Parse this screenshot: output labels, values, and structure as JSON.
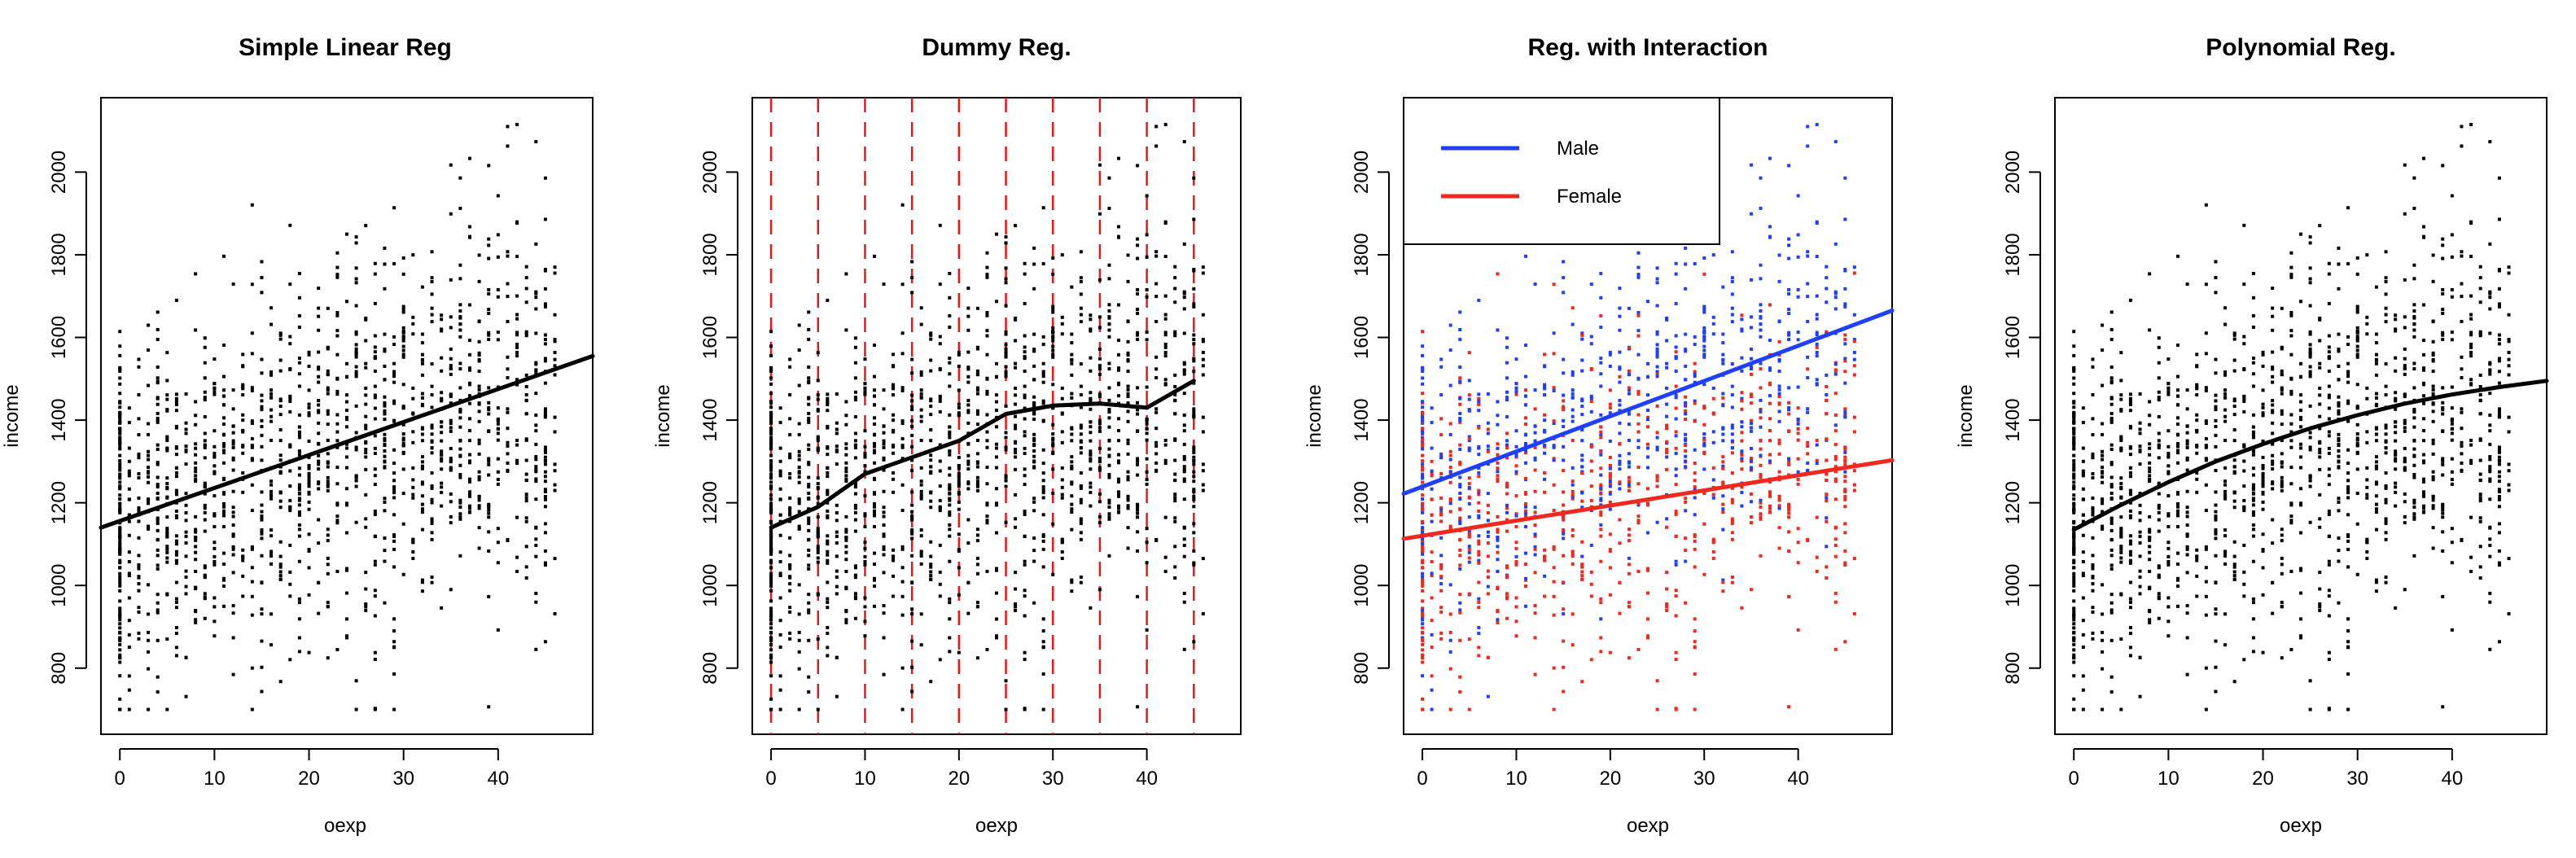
{
  "figure": {
    "background": "#ffffff",
    "axis_color": "#000000"
  },
  "chart_data": [
    {
      "type": "scatter",
      "title": "Simple Linear Reg",
      "xlabel": "oexp",
      "ylabel": "income",
      "xlim": [
        -2,
        50
      ],
      "ylim": [
        640,
        2180
      ],
      "xticks": [
        0,
        10,
        20,
        30,
        40
      ],
      "yticks": [
        800,
        1000,
        1200,
        1400,
        1600,
        1800,
        2000
      ],
      "grid": false,
      "scatter_color": "#000000",
      "lines": [
        {
          "x": [
            -2,
            50
          ],
          "y": [
            1140,
            1555
          ],
          "color": "#000000"
        }
      ]
    },
    {
      "type": "scatter",
      "title": "Dummy Reg.",
      "xlabel": "oexp",
      "ylabel": "income",
      "xlim": [
        -2,
        50
      ],
      "ylim": [
        640,
        2180
      ],
      "xticks": [
        0,
        10,
        20,
        30,
        40
      ],
      "yticks": [
        800,
        1000,
        1200,
        1400,
        1600,
        1800,
        2000
      ],
      "grid": false,
      "scatter_color": "#000000",
      "vlines": {
        "x": [
          0,
          5,
          10,
          15,
          20,
          25,
          30,
          35,
          40,
          45
        ],
        "color": "#e31a1c",
        "dashed": true
      },
      "lines": [
        {
          "x": [
            0,
            5,
            10,
            15,
            20,
            25,
            30,
            35,
            40,
            45
          ],
          "y": [
            1140,
            1190,
            1270,
            1310,
            1350,
            1415,
            1435,
            1440,
            1430,
            1495
          ],
          "color": "#000000"
        }
      ]
    },
    {
      "type": "scatter",
      "title": "Reg. with Interaction",
      "xlabel": "oexp",
      "ylabel": "income",
      "xlim": [
        -2,
        50
      ],
      "ylim": [
        640,
        2180
      ],
      "xticks": [
        0,
        10,
        20,
        30,
        40
      ],
      "yticks": [
        800,
        1000,
        1200,
        1400,
        1600,
        1800,
        2000
      ],
      "grid": false,
      "legend": {
        "position": "top-left",
        "entries": [
          {
            "label": "Male",
            "color": "#1f3fff"
          },
          {
            "label": "Female",
            "color": "#f0281e"
          }
        ]
      },
      "series": [
        {
          "name": "Male",
          "color": "#1f3fff",
          "intercept": 1240,
          "slope": 8.5
        },
        {
          "name": "Female",
          "color": "#f0281e",
          "intercept": 1120,
          "slope": 3.6
        }
      ],
      "lines": [
        {
          "x": [
            -2,
            50
          ],
          "y": [
            1222,
            1665
          ],
          "color": "#1f3fff"
        },
        {
          "x": [
            -2,
            50
          ],
          "y": [
            1113,
            1303
          ],
          "color": "#f0281e"
        }
      ]
    },
    {
      "type": "scatter",
      "title": "Polynomial Reg.",
      "xlabel": "oexp",
      "ylabel": "income",
      "xlim": [
        -2,
        50
      ],
      "ylim": [
        640,
        2180
      ],
      "xticks": [
        0,
        10,
        20,
        30,
        40
      ],
      "yticks": [
        800,
        1000,
        1200,
        1400,
        1600,
        1800,
        2000
      ],
      "grid": false,
      "scatter_color": "#000000",
      "lines": [
        {
          "x": [
            0,
            5,
            10,
            15,
            20,
            25,
            30,
            35,
            40,
            45,
            50
          ],
          "y": [
            1135,
            1195,
            1250,
            1300,
            1342,
            1380,
            1412,
            1440,
            1462,
            1480,
            1495
          ],
          "color": "#000000"
        }
      ]
    }
  ]
}
